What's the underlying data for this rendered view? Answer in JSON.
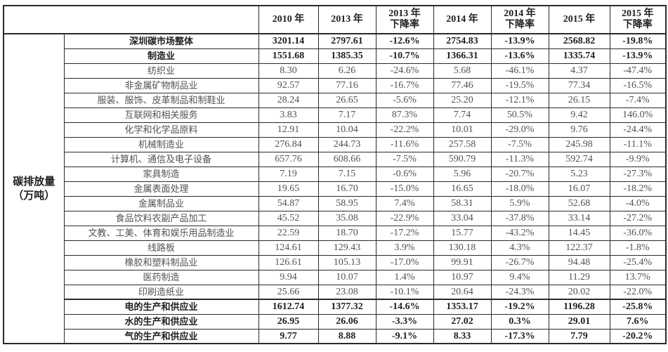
{
  "table": {
    "title_semantic": "深圳碳市场碳排放量数据表",
    "row_group_label": {
      "line1": "碳排放量",
      "line2": "（万吨）"
    },
    "corner_label": "",
    "columns": [
      {
        "line1": "2010 年",
        "line2": ""
      },
      {
        "line1": "2013 年",
        "line2": ""
      },
      {
        "line1": "2013 年",
        "line2": "下降率"
      },
      {
        "line1": "2014 年",
        "line2": ""
      },
      {
        "line1": "2014 年",
        "line2": "下降率"
      },
      {
        "line1": "2015 年",
        "line2": ""
      },
      {
        "line1": "2015 年",
        "line2": "下降率"
      }
    ],
    "rows": [
      {
        "label": "深圳碳市场整体",
        "bold": true,
        "section_top": false,
        "values": [
          "3201.14",
          "2797.61",
          "-12.6%",
          "2754.83",
          "-13.9%",
          "2568.82",
          "-19.8%"
        ]
      },
      {
        "label": "制造业",
        "bold": true,
        "section_top": false,
        "values": [
          "1551.68",
          "1385.35",
          "-10.7%",
          "1366.31",
          "-13.6%",
          "1335.74",
          "-13.9%"
        ]
      },
      {
        "label": "纺织业",
        "bold": false,
        "section_top": false,
        "values": [
          "8.30",
          "6.26",
          "-24.6%",
          "5.68",
          "-46.1%",
          "4.37",
          "-47.4%"
        ]
      },
      {
        "label": "非金属矿物制品业",
        "bold": false,
        "section_top": false,
        "values": [
          "92.57",
          "77.16",
          "-16.7%",
          "77.46",
          "-19.5%",
          "77.34",
          "-16.5%"
        ]
      },
      {
        "label": "服装、服饰、皮革制品和制鞋业",
        "bold": false,
        "section_top": false,
        "values": [
          "28.24",
          "26.65",
          "-5.6%",
          "25.20",
          "-12.1%",
          "26.15",
          "-7.4%"
        ]
      },
      {
        "label": "互联网和相关服务",
        "bold": false,
        "section_top": false,
        "values": [
          "3.83",
          "7.17",
          "87.3%",
          "7.74",
          "50.5%",
          "9.42",
          "146.0%"
        ]
      },
      {
        "label": "化学和化学品原料",
        "bold": false,
        "section_top": false,
        "values": [
          "12.91",
          "10.04",
          "-22.2%",
          "10.01",
          "-29.0%",
          "9.76",
          "-24.4%"
        ]
      },
      {
        "label": "机械制造业",
        "bold": false,
        "section_top": false,
        "values": [
          "276.84",
          "244.73",
          "-11.6%",
          "257.58",
          "-7.5%",
          "245.98",
          "-11.1%"
        ]
      },
      {
        "label": "计算机、通信及电子设备",
        "bold": false,
        "section_top": false,
        "values": [
          "657.76",
          "608.66",
          "-7.5%",
          "590.79",
          "-11.3%",
          "592.74",
          "-9.9%"
        ]
      },
      {
        "label": "家具制造",
        "bold": false,
        "section_top": false,
        "values": [
          "7.19",
          "7.15",
          "-0.6%",
          "5.96",
          "-20.7%",
          "5.23",
          "-27.3%"
        ]
      },
      {
        "label": "金属表面处理",
        "bold": false,
        "section_top": false,
        "values": [
          "19.65",
          "16.70",
          "-15.0%",
          "16.65",
          "-18.0%",
          "16.07",
          "-18.2%"
        ]
      },
      {
        "label": "金属制品业",
        "bold": false,
        "section_top": false,
        "values": [
          "54.87",
          "58.95",
          "7.4%",
          "58.31",
          "5.9%",
          "52.68",
          "-4.0%"
        ]
      },
      {
        "label": "食品饮料农副产品加工",
        "bold": false,
        "section_top": false,
        "values": [
          "45.52",
          "35.08",
          "-22.9%",
          "33.04",
          "-37.8%",
          "33.14",
          "-27.2%"
        ]
      },
      {
        "label": "文教、工美、体育和娱乐用品制造业",
        "bold": false,
        "section_top": false,
        "values": [
          "22.59",
          "18.70",
          "-17.2%",
          "15.77",
          "-43.2%",
          "14.45",
          "-36.0%"
        ]
      },
      {
        "label": "线路板",
        "bold": false,
        "section_top": false,
        "values": [
          "124.61",
          "129.43",
          "3.9%",
          "130.18",
          "4.3%",
          "122.37",
          "-1.8%"
        ]
      },
      {
        "label": "橡胶和塑料制品业",
        "bold": false,
        "section_top": false,
        "values": [
          "126.61",
          "105.13",
          "-17.0%",
          "99.91",
          "-26.7%",
          "94.48",
          "-25.4%"
        ]
      },
      {
        "label": "医药制造",
        "bold": false,
        "section_top": false,
        "values": [
          "9.94",
          "10.07",
          "1.4%",
          "10.97",
          "9.4%",
          "11.29",
          "13.7%"
        ]
      },
      {
        "label": "印刷造纸业",
        "bold": false,
        "section_top": false,
        "values": [
          "25.66",
          "23.08",
          "-10.1%",
          "20.64",
          "-24.3%",
          "20.02",
          "-22.0%"
        ]
      },
      {
        "label": "电的生产和供应业",
        "bold": true,
        "section_top": true,
        "values": [
          "1612.74",
          "1377.32",
          "-14.6%",
          "1353.17",
          "-19.2%",
          "1196.28",
          "-25.8%"
        ]
      },
      {
        "label": "水的生产和供应业",
        "bold": true,
        "section_top": false,
        "values": [
          "26.95",
          "26.06",
          "-3.3%",
          "27.02",
          "0.3%",
          "29.01",
          "7.6%"
        ]
      },
      {
        "label": "气的生产和供应业",
        "bold": true,
        "section_top": false,
        "values": [
          "9.77",
          "8.88",
          "-9.1%",
          "8.33",
          "-17.3%",
          "7.79",
          "-20.2%"
        ]
      }
    ]
  },
  "colors": {
    "border": "#2a2a2a",
    "text_regular": "#525252",
    "text_bold": "#1f1f1f",
    "background": "#ffffff"
  }
}
